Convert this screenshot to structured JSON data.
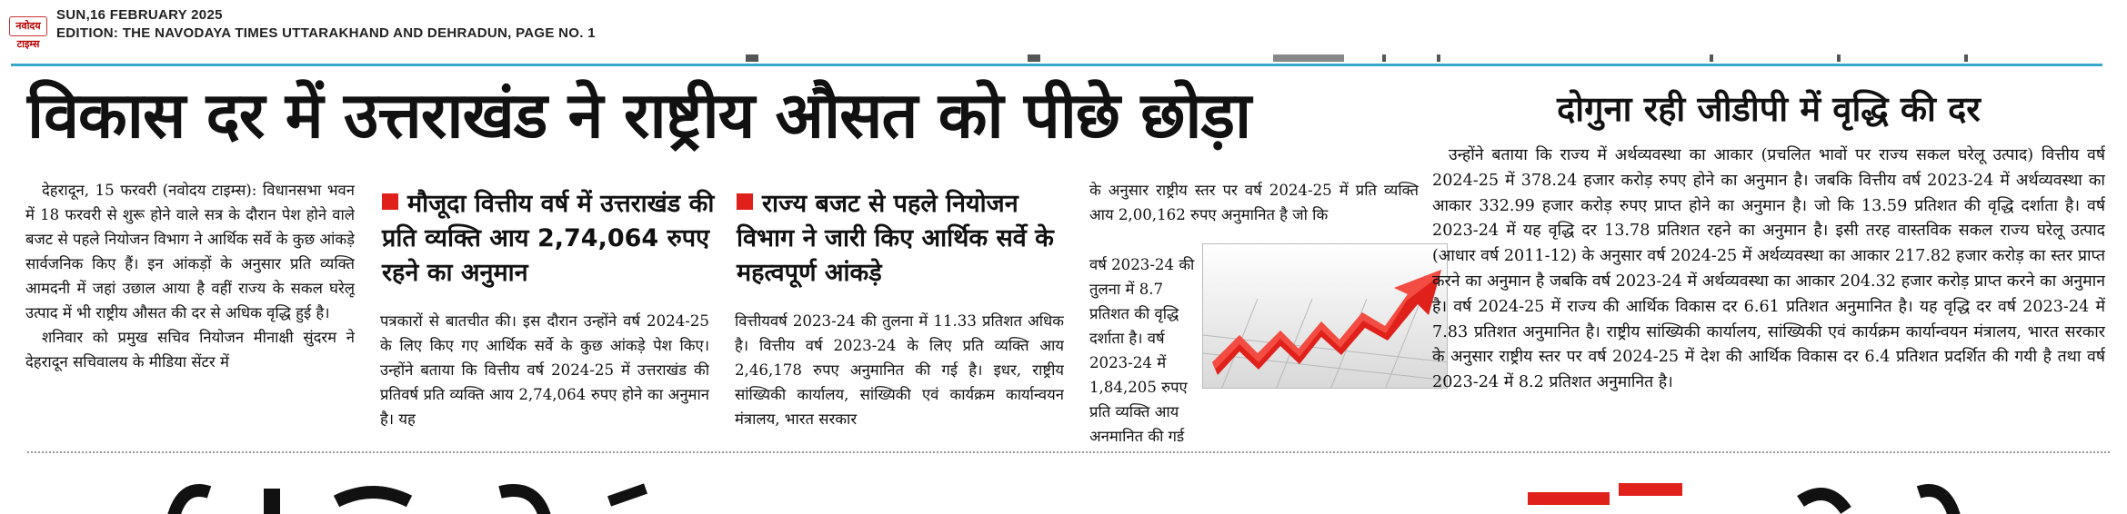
{
  "header": {
    "logo_text": "नवोदय टाइम्स",
    "date": "SUN,16 FEBRUARY 2025",
    "edition": "EDITION: THE NAVODAYA TIMES  UTTARAKHAND AND DEHRADUN, PAGE NO. 1"
  },
  "colors": {
    "accent_rule": "#39a7c9",
    "bullet_red": "#e0201b",
    "graph_red": "#e0201b"
  },
  "article": {
    "headline": "विकास दर में उत्तराखंड ने राष्ट्रीय औसत को पीछे छोड़ा",
    "col1": [
      "देहरादून, 15 फरवरी (नवोदय टाइम्स): विधानसभा भवन में 18 फरवरी से शुरू होने वाले सत्र के दौरान पेश होने वाले बजट से पहले नियोजन विभाग ने आर्थिक सर्वे के कुछ आंकड़े सार्वजनिक किए हैं। इन आंकड़ों के अनुसार प्रति व्यक्ति आमदनी में जहां उछाल आया है वहीं राज्य के सकल घरेलू उत्पाद में भी राष्ट्रीय औसत की दर से अधिक वृद्धि हुई है।",
      "शनिवार को प्रमुख सचिव नियोजन मीनाक्षी सुंदरम ने देहरादून सचिवालय के मीडिया सेंटर में"
    ],
    "subhead_1": "मौजूदा वित्तीय वर्ष में उत्तराखंड की प्रति व्यक्ति आय 2,74,064 रुपए रहने का अनुमान",
    "col2": "पत्रकारों से बातचीत की। इस दौरान उन्होंने वर्ष 2024-25 के लिए किए गए आर्थिक सर्वे के कुछ आंकड़े पेश किए। उन्होंने बताया कि वित्तीय वर्ष 2024-25 में उत्तराखंड की प्रतिवर्ष प्रति व्यक्ति आय 2,74,064 रुपए होने का अनुमान है। यह",
    "subhead_2": "राज्य बजट से पहले नियोजन विभाग ने जारी किए आर्थिक सर्वे के महत्वपूर्ण आंकड़े",
    "col3": "वित्तीयवर्ष 2023-24 की तुलना में 11.33 प्रतिशत अधिक है। वित्तीय वर्ष 2023-24 के लिए प्रति व्यक्ति आय 2,46,178 रुपए अनुमानित की गई है। इधर, राष्ट्रीय सांख्यिकी कार्यालय, सांख्यिकी एवं कार्यक्रम कार्यान्वयन मंत्रालय, भारत सरकार",
    "col4_top": "के अनुसार राष्ट्रीय स्तर पर वर्ष 2024-25 में प्रति व्यक्ति आय 2,00,162 रुपए अनुमानित है जो कि",
    "col4_side": "वर्ष 2023-24 की तुलना में 8.7 प्रतिशत की वृद्धि दर्शाता है। वर्ष 2023-24 में 1,84,205 रुपए प्रति व्यक्ति आय अनुमानित की गई है।",
    "graph_icon": "growth-arrow-graph",
    "subheadline": "दोगुना रही जीडीपी में वृद्धि की दर",
    "col5": "उन्होंने बताया कि राज्य में अर्थव्यवस्था का आकार (प्रचलित भावों पर राज्य सकल घरेलू उत्पाद) वित्तीय वर्ष 2024-25 में 378.24 हजार करोड़ रुपए होने का अनुमान है। जबकि वित्तीय वर्ष 2023-24 में अर्थव्यवस्था का आकार 332.99 हजार करोड़ रुपए प्राप्त होने का अनुमान है। जो कि 13.59 प्रतिशत की वृद्धि दर्शाता है। वर्ष 2023-24 में यह वृद्धि दर 13.78 प्रतिशत रहने का अनुमान है। इसी तरह वास्तविक सकल राज्य घरेलू उत्पाद (आधार वर्ष 2011-12) के अनुसार वर्ष 2024-25 में अर्थव्यवस्था का आकार 217.82 हजार करोड़ का स्तर प्राप्त करने का अनुमान है जबकि वर्ष 2023-24 में अर्थव्यवस्था का आकार 204.32 हजार करोड़ प्राप्त करने का अनुमान है। वर्ष 2024-25 में राज्य की आर्थिक विकास दर 6.61 प्रतिशत अनुमानित है। यह वृद्धि दर वर्ष 2023-24 में 7.83 प्रतिशत अनुमानित है। राष्ट्रीय सांख्यिकी कार्यालय, सांख्यिकी एवं कार्यक्रम कार्यान्वयन मंत्रालय, भारत सरकार के अनुसार राष्ट्रीय स्तर पर वर्ष 2024-25 में देश की आर्थिक विकास दर 6.4 प्रतिशत प्रदर्शित की गयी है तथा वर्ष 2023-24 में 8.2 प्रतिशत अनुमानित है।"
  }
}
